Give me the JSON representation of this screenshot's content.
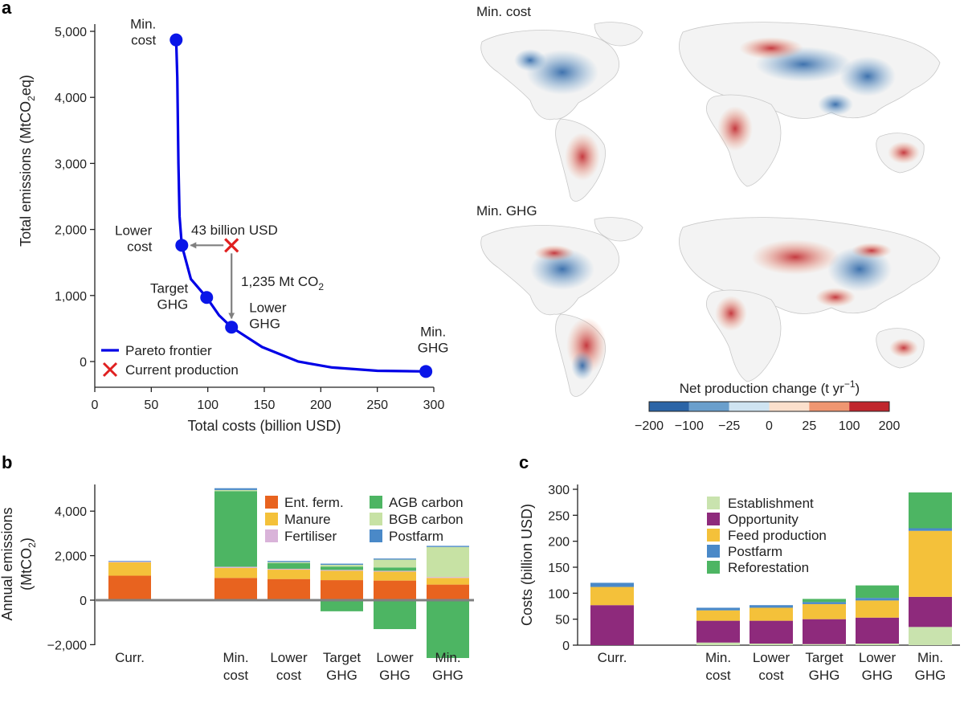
{
  "panels": {
    "a": "a",
    "b": "b",
    "c": "c"
  },
  "chart_data": [
    {
      "panel": "a",
      "type": "line",
      "xlabel": "Total costs (billion USD)",
      "ylabel_main": "Total emissions (MtCO",
      "ylabel_sub": "2",
      "ylabel_end": "eq)",
      "xlim": [
        0,
        300
      ],
      "ylim": [
        -200,
        5200
      ],
      "x_ticks": [
        0,
        50,
        100,
        150,
        200,
        250,
        300
      ],
      "x_tick_labels": [
        "0",
        "50",
        "100",
        "150",
        "200",
        "250",
        "300"
      ],
      "y_ticks": [
        0,
        1000,
        2000,
        3000,
        4000,
        5000
      ],
      "y_tick_labels": [
        "0",
        "1,000",
        "2,000",
        "3,000",
        "4,000",
        "5,000"
      ],
      "pareto_x": [
        72,
        73,
        74,
        75,
        77,
        85,
        99,
        110,
        121,
        148,
        180,
        210,
        250,
        293
      ],
      "pareto_y": [
        4870,
        4300,
        3000,
        2200,
        1760,
        1250,
        970,
        700,
        520,
        220,
        0,
        -90,
        -140,
        -150
      ],
      "key_points": [
        {
          "name": "min-cost",
          "x": 72,
          "y": 4870,
          "label_lines": [
            "Min.",
            "cost"
          ]
        },
        {
          "name": "lower-cost",
          "x": 77,
          "y": 1760,
          "label_lines": [
            "Lower",
            "cost"
          ]
        },
        {
          "name": "target-ghg",
          "x": 99,
          "y": 970,
          "label_lines": [
            "Target",
            "GHG"
          ]
        },
        {
          "name": "lower-ghg",
          "x": 121,
          "y": 520,
          "label_lines": [
            "Lower",
            "GHG"
          ]
        },
        {
          "name": "min-ghg",
          "x": 293,
          "y": -150,
          "label_lines": [
            "Min.",
            "GHG"
          ]
        }
      ],
      "current_production": {
        "x": 121,
        "y": 1760
      },
      "cost_annotation": "43 billion USD",
      "emission_annotation_main": "1,235 Mt CO",
      "emission_annotation_sub": "2",
      "legend": [
        {
          "label": "Pareto frontier",
          "color": "#0000e6"
        },
        {
          "label": "Current production",
          "color": "#e02020"
        }
      ],
      "colors": {
        "line": "#0000e6",
        "marker": "#0a16e8",
        "cross": "#e02020",
        "arrow": "#808080"
      }
    },
    {
      "panel": "b",
      "type": "bar",
      "ylabel_line1": "Annual emissions",
      "ylabel_line2_main": "(MtCO",
      "ylabel_line2_sub": "2",
      "ylabel_line2_end": ")",
      "ylim": [
        -3000,
        5300
      ],
      "y_ticks": [
        -2000,
        0,
        2000,
        4000
      ],
      "y_tick_labels": [
        "−2,000",
        "0",
        "2,000",
        "4,000"
      ],
      "scenarios": [
        {
          "label_lines": [
            "Curr."
          ],
          "slot": 0
        },
        {
          "label_lines": [
            "Min.",
            "cost"
          ],
          "slot": 2
        },
        {
          "label_lines": [
            "Lower",
            "cost"
          ],
          "slot": 3
        },
        {
          "label_lines": [
            "Target",
            "GHG"
          ],
          "slot": 4
        },
        {
          "label_lines": [
            "Lower",
            "GHG"
          ],
          "slot": 5
        },
        {
          "label_lines": [
            "Min.",
            "GHG"
          ],
          "slot": 6
        }
      ],
      "series": [
        {
          "name": "Ent. ferm.",
          "color": "#e8631f",
          "values": [
            1100,
            1000,
            950,
            900,
            880,
            700
          ]
        },
        {
          "name": "Manure",
          "color": "#f4c13a",
          "values": [
            600,
            450,
            420,
            420,
            400,
            300
          ]
        },
        {
          "name": "Fertiliser",
          "color": "#d9b3d9",
          "values": [
            30,
            50,
            40,
            40,
            40,
            40
          ]
        },
        {
          "name": "AGB carbon",
          "color": "#4db563",
          "values": [
            0,
            3400,
            250,
            150,
            150,
            -2600
          ]
        },
        {
          "name": "BGB carbon",
          "color": "#c7e2a4",
          "values": [
            0,
            50,
            50,
            80,
            350,
            1350
          ]
        },
        {
          "name": "Postfarm",
          "color": "#4a89c8",
          "values": [
            30,
            80,
            50,
            50,
            50,
            50
          ]
        }
      ],
      "negative_agb": [
        0,
        0,
        0,
        -500,
        -1300,
        -2600
      ],
      "legend_col1": [
        {
          "label": "Ent. ferm.",
          "color": "#e8631f"
        },
        {
          "label": "Manure",
          "color": "#f4c13a"
        },
        {
          "label": "Fertiliser",
          "color": "#d9b3d9"
        }
      ],
      "legend_col2": [
        {
          "label": "AGB carbon",
          "color": "#4db563"
        },
        {
          "label": "BGB carbon",
          "color": "#c7e2a4"
        },
        {
          "label": "Postfarm",
          "color": "#4a89c8"
        }
      ]
    },
    {
      "panel": "c",
      "type": "bar",
      "ylabel": "Costs (billion USD)",
      "ylim": [
        0,
        310
      ],
      "y_ticks": [
        0,
        50,
        100,
        150,
        200,
        250,
        300
      ],
      "y_tick_labels": [
        "0",
        "50",
        "100",
        "150",
        "200",
        "250",
        "300"
      ],
      "scenarios": [
        {
          "label_lines": [
            "Curr."
          ],
          "slot": 0
        },
        {
          "label_lines": [
            "Min.",
            "cost"
          ],
          "slot": 2
        },
        {
          "label_lines": [
            "Lower",
            "cost"
          ],
          "slot": 3
        },
        {
          "label_lines": [
            "Target",
            "GHG"
          ],
          "slot": 4
        },
        {
          "label_lines": [
            "Lower",
            "GHG"
          ],
          "slot": 5
        },
        {
          "label_lines": [
            "Min.",
            "GHG"
          ],
          "slot": 6
        }
      ],
      "series": [
        {
          "name": "Establishment",
          "color": "#c9e3ae",
          "values": [
            0,
            5,
            3,
            2,
            3,
            35
          ]
        },
        {
          "name": "Opportunity",
          "color": "#8e2a7c",
          "values": [
            77,
            42,
            44,
            48,
            50,
            58
          ]
        },
        {
          "name": "Feed production",
          "color": "#f4c13a",
          "values": [
            35,
            20,
            25,
            29,
            33,
            127
          ]
        },
        {
          "name": "Postfarm",
          "color": "#4a89c8",
          "values": [
            8,
            5,
            5,
            4,
            5,
            5
          ]
        },
        {
          "name": "Reforestation",
          "color": "#4db563",
          "values": [
            0,
            0,
            0,
            6,
            24,
            69
          ]
        }
      ],
      "legend": [
        {
          "label": "Establishment",
          "color": "#c9e3ae"
        },
        {
          "label": "Opportunity",
          "color": "#8e2a7c"
        },
        {
          "label": "Feed production",
          "color": "#f4c13a"
        },
        {
          "label": "Postfarm",
          "color": "#4a89c8"
        },
        {
          "label": "Reforestation",
          "color": "#4db563"
        }
      ]
    }
  ],
  "maps": {
    "top_title": "Min. cost",
    "bottom_title": "Min. GHG",
    "colorbar_title_main": "Net production change (t yr",
    "colorbar_title_sup": "−1",
    "colorbar_title_end": ")",
    "colorbar_labels": [
      "−200",
      "−100",
      "−25",
      "0",
      "25",
      "100",
      "200"
    ],
    "colorbar_colors": [
      "#2b64a6",
      "#6a9fcc",
      "#cfe4f1",
      "#fbe0cc",
      "#ef9671",
      "#c0262d"
    ]
  }
}
